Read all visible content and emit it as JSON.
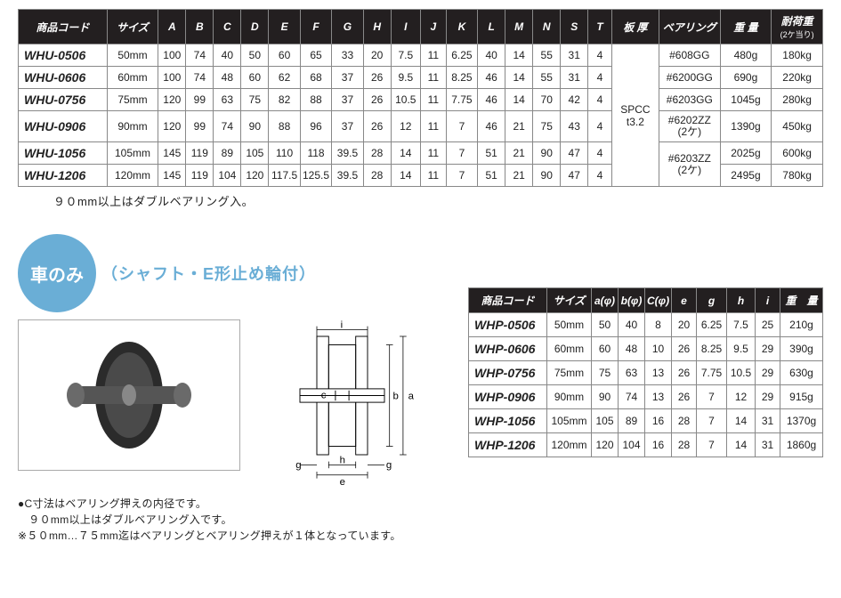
{
  "table1": {
    "headers": [
      "商品コード",
      "サイズ",
      "A",
      "B",
      "C",
      "D",
      "E",
      "F",
      "G",
      "H",
      "I",
      "J",
      "K",
      "L",
      "M",
      "N",
      "S",
      "T",
      "板 厚",
      "ベアリング",
      "重 量",
      "耐荷重"
    ],
    "load_sub": "(2ケ当り)",
    "rows": [
      {
        "code": "WHU-0506",
        "size": "50mm",
        "v": [
          "100",
          "74",
          "40",
          "50",
          "60",
          "65",
          "33",
          "20",
          "7.5",
          "11",
          "6.25",
          "40",
          "14",
          "55",
          "31",
          "4"
        ],
        "bearing": "#608GG",
        "weight": "480g",
        "load": "180kg"
      },
      {
        "code": "WHU-0606",
        "size": "60mm",
        "v": [
          "100",
          "74",
          "48",
          "60",
          "62",
          "68",
          "37",
          "26",
          "9.5",
          "11",
          "8.25",
          "46",
          "14",
          "55",
          "31",
          "4"
        ],
        "bearing": "#6200GG",
        "weight": "690g",
        "load": "220kg"
      },
      {
        "code": "WHU-0756",
        "size": "75mm",
        "v": [
          "120",
          "99",
          "63",
          "75",
          "82",
          "88",
          "37",
          "26",
          "10.5",
          "11",
          "7.75",
          "46",
          "14",
          "70",
          "42",
          "4"
        ],
        "bearing": "#6203GG",
        "weight": "1045g",
        "load": "280kg"
      },
      {
        "code": "WHU-0906",
        "size": "90mm",
        "v": [
          "120",
          "99",
          "74",
          "90",
          "88",
          "96",
          "37",
          "26",
          "12",
          "11",
          "7",
          "46",
          "21",
          "75",
          "43",
          "4"
        ],
        "bearing": "#6202ZZ",
        "bearing_sub": "(2ケ)",
        "weight": "1390g",
        "load": "450kg"
      },
      {
        "code": "WHU-1056",
        "size": "105mm",
        "v": [
          "145",
          "119",
          "89",
          "105",
          "110",
          "118",
          "39.5",
          "28",
          "14",
          "11",
          "7",
          "51",
          "21",
          "90",
          "47",
          "4"
        ],
        "bearing": "#6203ZZ",
        "bearing_sub": "(2ケ)",
        "weight": "2025g",
        "load": "600kg"
      },
      {
        "code": "WHU-1206",
        "size": "120mm",
        "v": [
          "145",
          "119",
          "104",
          "120",
          "117.5",
          "125.5",
          "39.5",
          "28",
          "14",
          "11",
          "7",
          "51",
          "21",
          "90",
          "47",
          "4"
        ],
        "bearing": "",
        "weight": "2495g",
        "load": "780kg"
      }
    ],
    "plate_thickness": "SPCC\nt3.2"
  },
  "note1": "９０mm以上はダブルベアリング入。",
  "badge": "車のみ",
  "subtxt": "（シャフト・E形止め輪付）",
  "notes2": [
    "●C寸法はベアリング押えの内径です。",
    "　９０mm以上はダブルベアリング入です。",
    "※５０mm…７５mm迄はベアリングとベアリング押えが１体となっています。"
  ],
  "table2": {
    "headers": [
      "商品コード",
      "サイズ",
      "a(φ)",
      "b(φ)",
      "C(φ)",
      "e",
      "g",
      "h",
      "i",
      "重　量"
    ],
    "rows": [
      {
        "code": "WHP-0506",
        "size": "50mm",
        "v": [
          "50",
          "40",
          "8",
          "20",
          "6.25",
          "7.5",
          "25"
        ],
        "weight": "210g"
      },
      {
        "code": "WHP-0606",
        "size": "60mm",
        "v": [
          "60",
          "48",
          "10",
          "26",
          "8.25",
          "9.5",
          "29"
        ],
        "weight": "390g"
      },
      {
        "code": "WHP-0756",
        "size": "75mm",
        "v": [
          "75",
          "63",
          "13",
          "26",
          "7.75",
          "10.5",
          "29"
        ],
        "weight": "630g"
      },
      {
        "code": "WHP-0906",
        "size": "90mm",
        "v": [
          "90",
          "74",
          "13",
          "26",
          "7",
          "12",
          "29"
        ],
        "weight": "915g"
      },
      {
        "code": "WHP-1056",
        "size": "105mm",
        "v": [
          "105",
          "89",
          "16",
          "28",
          "7",
          "14",
          "31"
        ],
        "weight": "1370g"
      },
      {
        "code": "WHP-1206",
        "size": "120mm",
        "v": [
          "120",
          "104",
          "16",
          "28",
          "7",
          "14",
          "31"
        ],
        "weight": "1860g"
      }
    ]
  },
  "diagram_labels": {
    "a": "a",
    "b": "b",
    "c": "c",
    "e": "e",
    "g": "g",
    "h": "h",
    "i": "i"
  }
}
